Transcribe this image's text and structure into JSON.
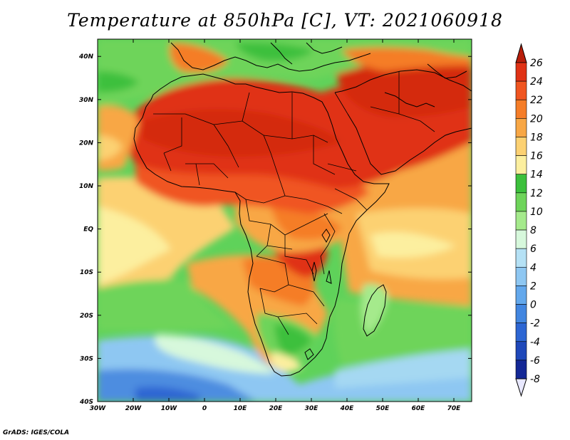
{
  "title": "Temperature at 850hPa [C], VT: 2021060918",
  "credit": "GrADS: IGES/COLA",
  "map": {
    "lat_labels": [
      "40N",
      "30N",
      "20N",
      "10N",
      "EQ",
      "10S",
      "20S",
      "30S",
      "40S"
    ],
    "lat_values": [
      40,
      30,
      20,
      10,
      0,
      -10,
      -20,
      -30,
      -40
    ],
    "lon_labels": [
      "30W",
      "20W",
      "10W",
      "0",
      "10E",
      "20E",
      "30E",
      "40E",
      "50E",
      "60E",
      "70E"
    ],
    "lon_values": [
      -30,
      -20,
      -10,
      0,
      10,
      20,
      30,
      40,
      50,
      60,
      70
    ],
    "lon_range": [
      -30,
      75
    ],
    "lat_range": [
      -40,
      44
    ]
  },
  "colorbar": {
    "labels": [
      "26",
      "24",
      "22",
      "20",
      "18",
      "16",
      "14",
      "12",
      "10",
      "8",
      "6",
      "4",
      "2",
      "0",
      "-2",
      "-4",
      "-6",
      "-8"
    ],
    "colors": [
      "#b81e0a",
      "#e03215",
      "#f05520",
      "#f57d28",
      "#f8a745",
      "#fcd172",
      "#fcef9f",
      "#3cc03c",
      "#6ed45a",
      "#a5ea8c",
      "#d7f8dc",
      "#b5e1f5",
      "#8ec7f2",
      "#63a8ec",
      "#4286e0",
      "#2d66d3",
      "#1f48ba",
      "#142896",
      "#0b1567"
    ]
  }
}
